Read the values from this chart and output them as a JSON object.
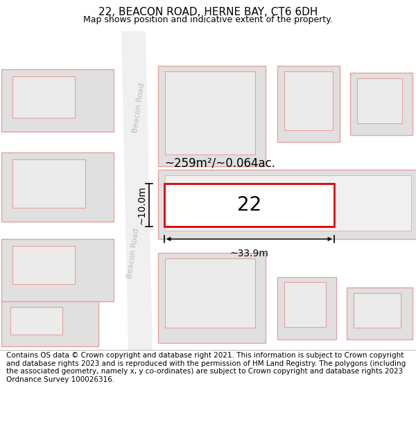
{
  "title": "22, BEACON ROAD, HERNE BAY, CT6 6DH",
  "subtitle": "Map shows position and indicative extent of the property.",
  "footer": "Contains OS data © Crown copyright and database right 2021. This information is subject to Crown copyright and database rights 2023 and is reproduced with the permission of HM Land Registry. The polygons (including the associated geometry, namely x, y co-ordinates) are subject to Crown copyright and database rights 2023 Ordnance Survey 100026316.",
  "area_label": "~259m²/~0.064ac.",
  "width_label": "~33.9m",
  "height_label": "~10.0m",
  "property_number": "22",
  "map_bg": "#ffffff",
  "road_fill": "#f8f8f8",
  "building_fill": "#e0e0e0",
  "building_outline": "#e8a0a0",
  "inner_fill": "#ebebeb",
  "property_fill": "#ffffff",
  "property_outline": "#dd0000",
  "road_label_color": "#bbbbbb",
  "title_fontsize": 11,
  "subtitle_fontsize": 9,
  "footer_fontsize": 7.5,
  "number_fontsize": 20,
  "area_fontsize": 12,
  "dim_fontsize": 10,
  "road_label_fontsize": 8
}
